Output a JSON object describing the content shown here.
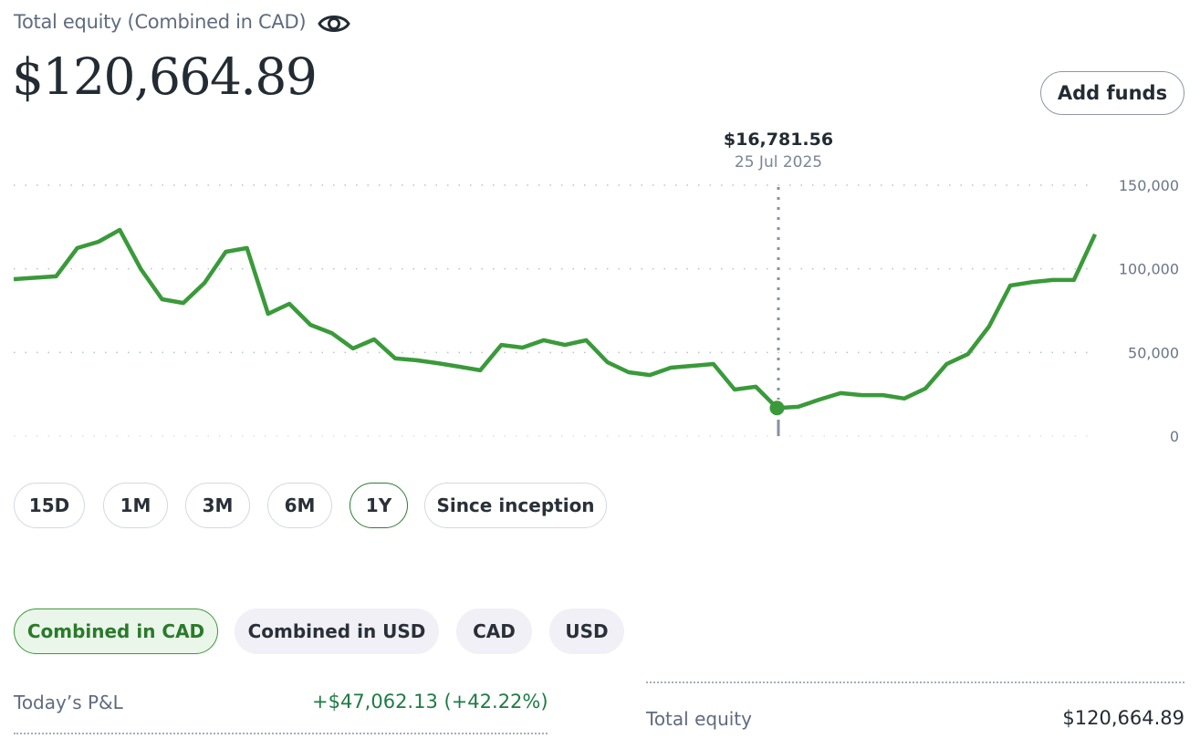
{
  "header": {
    "title": "Total equity (Combined in CAD)",
    "visibility_icon": "eye-icon",
    "total_equity": "$120,664.89",
    "add_funds_label": "Add funds"
  },
  "tooltip": {
    "value": "$16,781.56",
    "date": "25 Jul 2025"
  },
  "range_tabs": [
    {
      "label": "15D",
      "active": false
    },
    {
      "label": "1M",
      "active": false
    },
    {
      "label": "3M",
      "active": false
    },
    {
      "label": "6M",
      "active": false
    },
    {
      "label": "1Y",
      "active": true
    },
    {
      "label": "Since inception",
      "active": false
    }
  ],
  "currency_tabs": [
    {
      "label": "Combined in CAD",
      "active": true
    },
    {
      "label": "Combined in USD",
      "active": false
    },
    {
      "label": "CAD",
      "active": false
    },
    {
      "label": "USD",
      "active": false
    }
  ],
  "summary": {
    "pnl_label": "Today’s P&L",
    "pnl_value": "+$47,062.13 (+42.22%)",
    "total_label": "Total equity",
    "total_value": "$120,664.89"
  },
  "colors": {
    "line": "#3a9a3a",
    "positive": "#1e7b45",
    "active_border": "#2e7d32"
  },
  "chart_data": {
    "type": "line",
    "ylim": [
      0,
      150000
    ],
    "y_ticks": [
      "150,000",
      "100,000",
      "50,000",
      "0"
    ],
    "y_tick_values": [
      150000,
      100000,
      50000,
      0
    ],
    "grid": true,
    "xlim": [
      0,
      51
    ],
    "highlight": {
      "x": 36,
      "y": 16781.56
    },
    "points": [
      [
        0,
        93800
      ],
      [
        2,
        95500
      ],
      [
        3,
        112400
      ],
      [
        4,
        116200
      ],
      [
        5,
        123300
      ],
      [
        6,
        99800
      ],
      [
        7,
        81800
      ],
      [
        8,
        79600
      ],
      [
        9,
        91600
      ],
      [
        10,
        110200
      ],
      [
        11,
        112400
      ],
      [
        12,
        73100
      ],
      [
        13,
        79100
      ],
      [
        14,
        66500
      ],
      [
        15,
        61600
      ],
      [
        16,
        52400
      ],
      [
        17,
        57800
      ],
      [
        18,
        46400
      ],
      [
        19,
        45300
      ],
      [
        20,
        43600
      ],
      [
        21,
        41500
      ],
      [
        22,
        39300
      ],
      [
        23,
        54500
      ],
      [
        24,
        52900
      ],
      [
        25,
        57300
      ],
      [
        26,
        54500
      ],
      [
        27,
        57300
      ],
      [
        28,
        44200
      ],
      [
        29,
        38200
      ],
      [
        30,
        36500
      ],
      [
        31,
        40900
      ],
      [
        32,
        42000
      ],
      [
        33,
        43100
      ],
      [
        34,
        27800
      ],
      [
        35,
        29500
      ],
      [
        36,
        16781.56
      ],
      [
        37,
        17500
      ],
      [
        38,
        21800
      ],
      [
        39,
        25700
      ],
      [
        40,
        24500
      ],
      [
        41,
        24500
      ],
      [
        42,
        22500
      ],
      [
        43,
        28400
      ],
      [
        44,
        43100
      ],
      [
        45,
        49000
      ],
      [
        46,
        65500
      ],
      [
        47,
        90000
      ],
      [
        48,
        92000
      ],
      [
        49,
        93300
      ],
      [
        50,
        93300
      ],
      [
        51,
        120664.89
      ]
    ]
  }
}
